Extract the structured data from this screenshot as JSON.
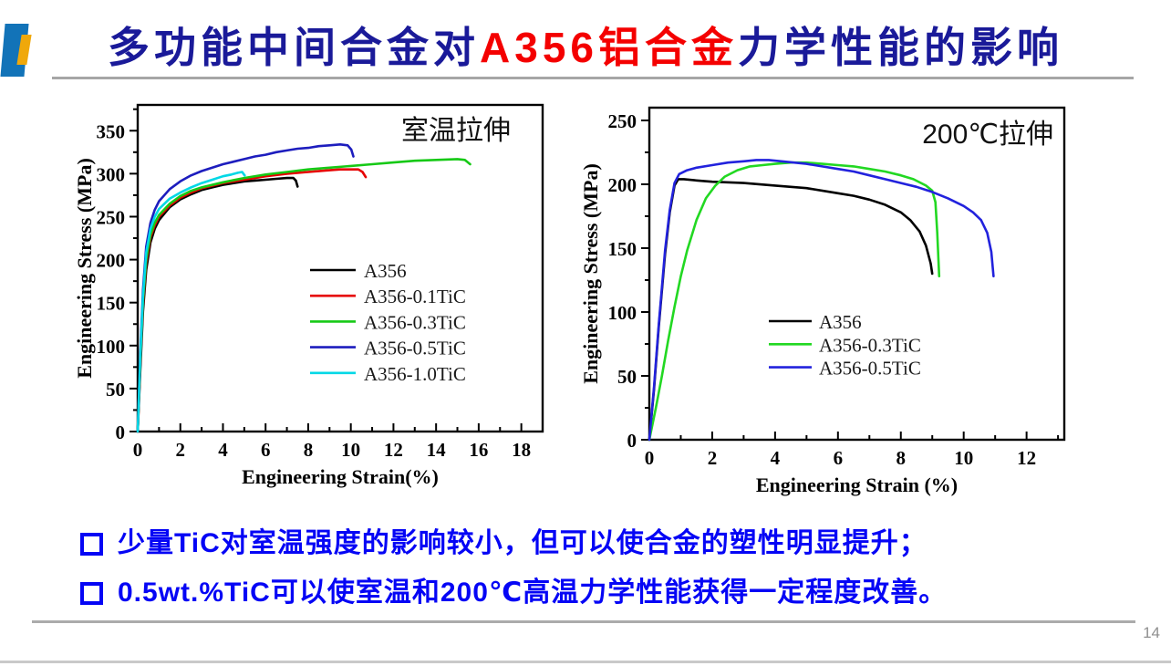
{
  "slide": {
    "title": {
      "part1": "多功能中间合金对",
      "part2": "A356铝合金",
      "part3": "力学性能的影响"
    },
    "bullets": [
      "少量TiC对室温强度的影响较小，但可以使合金的塑性明显提升；",
      "0.5wt.%TiC可以使室温和200℃高温力学性能获得一定程度改善。"
    ],
    "page_number": "14",
    "colors": {
      "title_navy": "#1a1a99",
      "title_red": "#f40000",
      "bullet_blue": "#0505f5",
      "accent_blue": "#1273b8",
      "accent_yellow": "#f0a80a",
      "rule_gray": "#a6a6a6",
      "page_number_gray": "#8f8f8f"
    }
  },
  "chart_data": [
    {
      "type": "line",
      "title": "室温拉伸",
      "xlabel": "Engineering Strain(%)",
      "ylabel": "Engineering Stress (MPa)",
      "xlim": [
        0,
        19
      ],
      "ylim": [
        0,
        380
      ],
      "xticks": [
        0,
        2,
        4,
        6,
        8,
        10,
        12,
        14,
        16,
        18
      ],
      "yticks": [
        0,
        50,
        100,
        150,
        200,
        250,
        300,
        350
      ],
      "grid": false,
      "legend_position": "center-right",
      "series": [
        {
          "name": "A356",
          "color": "#000000",
          "points": [
            [
              0,
              0
            ],
            [
              0.12,
              70
            ],
            [
              0.25,
              140
            ],
            [
              0.4,
              188
            ],
            [
              0.6,
              220
            ],
            [
              0.8,
              236
            ],
            [
              1,
              246
            ],
            [
              1.5,
              261
            ],
            [
              2,
              270
            ],
            [
              2.5,
              276
            ],
            [
              3,
              281
            ],
            [
              3.5,
              284
            ],
            [
              4,
              287
            ],
            [
              4.5,
              289
            ],
            [
              5,
              291
            ],
            [
              5.5,
              292
            ],
            [
              6,
              293
            ],
            [
              6.5,
              294
            ],
            [
              7,
              295
            ],
            [
              7.3,
              295
            ],
            [
              7.42,
              292
            ],
            [
              7.5,
              285
            ]
          ]
        },
        {
          "name": "A356-0.1TiC",
          "color": "#e60000",
          "points": [
            [
              0,
              0
            ],
            [
              0.12,
              78
            ],
            [
              0.25,
              148
            ],
            [
              0.4,
              196
            ],
            [
              0.6,
              226
            ],
            [
              0.8,
              240
            ],
            [
              1,
              250
            ],
            [
              1.5,
              263
            ],
            [
              2,
              272
            ],
            [
              2.5,
              278
            ],
            [
              3,
              283
            ],
            [
              4,
              289
            ],
            [
              5,
              293
            ],
            [
              6,
              297
            ],
            [
              7,
              300
            ],
            [
              8,
              302
            ],
            [
              9,
              304
            ],
            [
              9.5,
              305
            ],
            [
              10,
              305
            ],
            [
              10.35,
              305
            ],
            [
              10.55,
              302
            ],
            [
              10.7,
              296
            ]
          ]
        },
        {
          "name": "A356-0.3TiC",
          "color": "#16c916",
          "points": [
            [
              0,
              0
            ],
            [
              0.12,
              82
            ],
            [
              0.25,
              152
            ],
            [
              0.4,
              200
            ],
            [
              0.6,
              229
            ],
            [
              0.8,
              243
            ],
            [
              1,
              252
            ],
            [
              1.5,
              265
            ],
            [
              2,
              274
            ],
            [
              2.5,
              280
            ],
            [
              3,
              284
            ],
            [
              4,
              290
            ],
            [
              5,
              295
            ],
            [
              6,
              299
            ],
            [
              7,
              302
            ],
            [
              8,
              305
            ],
            [
              9,
              307
            ],
            [
              10,
              309
            ],
            [
              11,
              311
            ],
            [
              12,
              313
            ],
            [
              13,
              315
            ],
            [
              14,
              316
            ],
            [
              15,
              317
            ],
            [
              15.35,
              316
            ],
            [
              15.6,
              311
            ]
          ]
        },
        {
          "name": "A356-0.5TiC",
          "color": "#1d1dbe",
          "points": [
            [
              0,
              0
            ],
            [
              0.12,
              90
            ],
            [
              0.25,
              165
            ],
            [
              0.4,
              215
            ],
            [
              0.6,
              243
            ],
            [
              0.8,
              258
            ],
            [
              1,
              268
            ],
            [
              1.5,
              282
            ],
            [
              2,
              291
            ],
            [
              2.5,
              298
            ],
            [
              3,
              303
            ],
            [
              3.5,
              307
            ],
            [
              4,
              311
            ],
            [
              4.5,
              314
            ],
            [
              5,
              317
            ],
            [
              5.5,
              320
            ],
            [
              6,
              322
            ],
            [
              6.5,
              325
            ],
            [
              7,
              327
            ],
            [
              7.5,
              329
            ],
            [
              8,
              330
            ],
            [
              8.5,
              332
            ],
            [
              9,
              333
            ],
            [
              9.5,
              334
            ],
            [
              9.85,
              333
            ],
            [
              10.02,
              328
            ],
            [
              10.12,
              320
            ]
          ]
        },
        {
          "name": "A356-1.0TiC",
          "color": "#00d8e6",
          "points": [
            [
              0,
              0
            ],
            [
              0.12,
              86
            ],
            [
              0.25,
              158
            ],
            [
              0.4,
              208
            ],
            [
              0.6,
              236
            ],
            [
              0.8,
              250
            ],
            [
              1,
              259
            ],
            [
              1.5,
              271
            ],
            [
              2,
              278
            ],
            [
              2.5,
              284
            ],
            [
              3,
              289
            ],
            [
              3.5,
              293
            ],
            [
              4,
              297
            ],
            [
              4.4,
              299
            ],
            [
              4.7,
              301
            ],
            [
              4.9,
              302
            ],
            [
              5.02,
              298
            ]
          ]
        }
      ]
    },
    {
      "type": "line",
      "title": "200℃拉伸",
      "xlabel": "Engineering Strain (%)",
      "ylabel": "Engineering Stress (MPa)",
      "xlim": [
        0,
        13.2
      ],
      "ylim": [
        0,
        260
      ],
      "xticks": [
        0,
        2,
        4,
        6,
        8,
        10,
        12
      ],
      "yticks": [
        0,
        50,
        100,
        150,
        200,
        250
      ],
      "grid": false,
      "legend_position": "lower-center",
      "series": [
        {
          "name": "A356",
          "color": "#000000",
          "points": [
            [
              0,
              0
            ],
            [
              0.15,
              40
            ],
            [
              0.3,
              88
            ],
            [
              0.5,
              145
            ],
            [
              0.65,
              178
            ],
            [
              0.8,
              199
            ],
            [
              0.92,
              204
            ],
            [
              1.1,
              204
            ],
            [
              1.5,
              203
            ],
            [
              2,
              202
            ],
            [
              3,
              201
            ],
            [
              4,
              199
            ],
            [
              5,
              197
            ],
            [
              6,
              193
            ],
            [
              6.5,
              191
            ],
            [
              7,
              188
            ],
            [
              7.5,
              184
            ],
            [
              8,
              178
            ],
            [
              8.3,
              172
            ],
            [
              8.6,
              163
            ],
            [
              8.8,
              152
            ],
            [
              8.95,
              138
            ],
            [
              9,
              130
            ]
          ]
        },
        {
          "name": "A356-0.3TiC",
          "color": "#22d822",
          "points": [
            [
              0,
              0
            ],
            [
              0.2,
              24
            ],
            [
              0.4,
              50
            ],
            [
              0.6,
              78
            ],
            [
              0.8,
              104
            ],
            [
              1,
              128
            ],
            [
              1.2,
              148
            ],
            [
              1.5,
              172
            ],
            [
              1.8,
              189
            ],
            [
              2.1,
              199
            ],
            [
              2.4,
              206
            ],
            [
              2.8,
              211
            ],
            [
              3.2,
              214
            ],
            [
              3.6,
              215
            ],
            [
              4,
              216
            ],
            [
              4.5,
              217
            ],
            [
              5,
              217
            ],
            [
              5.5,
              216
            ],
            [
              6,
              215
            ],
            [
              6.5,
              214
            ],
            [
              7,
              212
            ],
            [
              7.5,
              210
            ],
            [
              8,
              207
            ],
            [
              8.4,
              204
            ],
            [
              8.8,
              199
            ],
            [
              9,
              195
            ],
            [
              9.1,
              186
            ],
            [
              9.16,
              162
            ],
            [
              9.22,
              128
            ]
          ]
        },
        {
          "name": "A356-0.5TiC",
          "color": "#2222dd",
          "points": [
            [
              0,
              0
            ],
            [
              0.15,
              42
            ],
            [
              0.3,
              90
            ],
            [
              0.5,
              148
            ],
            [
              0.65,
              180
            ],
            [
              0.8,
              201
            ],
            [
              0.95,
              208
            ],
            [
              1.2,
              211
            ],
            [
              1.5,
              213
            ],
            [
              2,
              215
            ],
            [
              2.5,
              217
            ],
            [
              3,
              218
            ],
            [
              3.4,
              219
            ],
            [
              3.8,
              219
            ],
            [
              4.2,
              218
            ],
            [
              4.6,
              217
            ],
            [
              5,
              216
            ],
            [
              5.5,
              214
            ],
            [
              6,
              212
            ],
            [
              6.5,
              210
            ],
            [
              7,
              207
            ],
            [
              7.5,
              204
            ],
            [
              8,
              201
            ],
            [
              8.5,
              198
            ],
            [
              9,
              194
            ],
            [
              9.5,
              189
            ],
            [
              10,
              183
            ],
            [
              10.3,
              178
            ],
            [
              10.55,
              172
            ],
            [
              10.75,
              162
            ],
            [
              10.88,
              147
            ],
            [
              10.95,
              128
            ]
          ]
        }
      ]
    }
  ]
}
